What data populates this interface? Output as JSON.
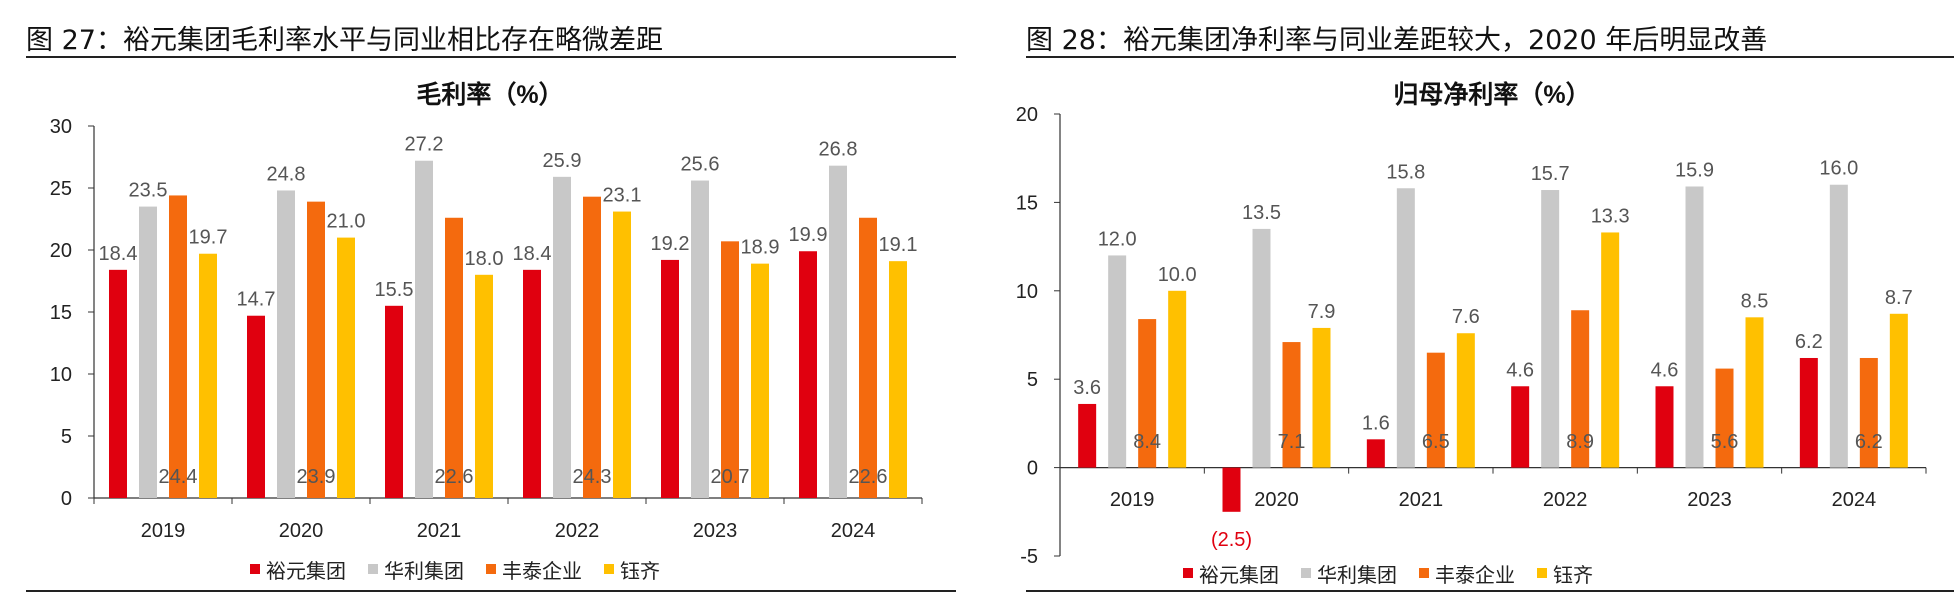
{
  "colors": {
    "series": [
      "#e0000f",
      "#c8c8c8",
      "#f46a0e",
      "#ffc000"
    ],
    "negative_label": "#e0000f"
  },
  "left": {
    "fig_title": "图 27：裕元集团毛利率水平与同业相比存在略微差距",
    "chart_data": {
      "type": "bar",
      "title": "毛利率（%）",
      "categories": [
        "2019",
        "2020",
        "2021",
        "2022",
        "2023",
        "2024"
      ],
      "series": [
        {
          "name": "裕元集团",
          "values": [
            18.4,
            14.7,
            15.5,
            18.4,
            19.2,
            19.9
          ]
        },
        {
          "name": "华利集团",
          "values": [
            23.5,
            24.8,
            27.2,
            25.9,
            25.6,
            26.8
          ]
        },
        {
          "name": "丰泰企业",
          "values": [
            24.4,
            23.9,
            22.6,
            24.3,
            20.7,
            22.6
          ]
        },
        {
          "name": "钰齐",
          "values": [
            19.7,
            21.0,
            18.0,
            23.1,
            18.9,
            19.1
          ]
        }
      ],
      "ylim": [
        0,
        30
      ],
      "yticks": [
        0,
        5,
        10,
        15,
        20,
        25,
        30
      ],
      "legend": "bottom"
    }
  },
  "right": {
    "fig_title": "图 28：裕元集团净利率与同业差距较大，2020 年后明显改善",
    "chart_data": {
      "type": "bar",
      "title": "归母净利率（%）",
      "categories": [
        "2019",
        "2020",
        "2021",
        "2022",
        "2023",
        "2024"
      ],
      "series": [
        {
          "name": "裕元集团",
          "values": [
            3.6,
            -2.5,
            1.6,
            4.6,
            4.6,
            6.2
          ]
        },
        {
          "name": "华利集团",
          "values": [
            12.0,
            13.5,
            15.8,
            15.7,
            15.9,
            16.0
          ]
        },
        {
          "name": "丰泰企业",
          "values": [
            8.4,
            7.1,
            6.5,
            8.9,
            5.6,
            6.2
          ]
        },
        {
          "name": "钰齐",
          "values": [
            10.0,
            7.9,
            7.6,
            13.3,
            8.5,
            8.7
          ]
        }
      ],
      "ylim": [
        -5,
        20
      ],
      "yticks": [
        -5,
        0,
        5,
        10,
        15,
        20
      ],
      "legend": "bottom"
    }
  }
}
